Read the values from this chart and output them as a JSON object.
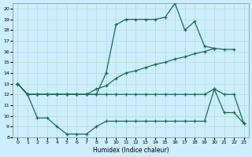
{
  "xlabel": "Humidex (Indice chaleur)",
  "bg_color": "#cceeff",
  "grid_color": "#b5ddd0",
  "line_color": "#1a6b5a",
  "xlim": [
    -0.5,
    23.5
  ],
  "ylim": [
    8,
    20.5
  ],
  "x_ticks": [
    0,
    1,
    2,
    3,
    4,
    5,
    6,
    7,
    8,
    9,
    10,
    11,
    12,
    13,
    14,
    15,
    16,
    17,
    18,
    19,
    20,
    21,
    22,
    23
  ],
  "y_ticks": [
    8,
    9,
    10,
    11,
    12,
    13,
    14,
    15,
    16,
    17,
    18,
    19,
    20
  ],
  "line_upper_x": [
    0,
    1,
    2,
    3,
    4,
    5,
    6,
    7,
    8,
    9,
    10,
    11,
    12,
    13,
    14,
    15,
    16,
    17,
    18,
    19,
    20
  ],
  "line_upper_y": [
    13,
    12,
    12,
    12,
    12,
    12,
    12,
    12,
    12,
    14,
    18.5,
    19,
    19,
    19,
    19,
    19.2,
    20.5,
    18,
    18.8,
    16.5,
    16.3
  ],
  "line_mid_x": [
    0,
    1,
    2,
    3,
    4,
    5,
    6,
    7,
    8,
    9,
    10,
    11,
    12,
    13,
    14,
    15,
    16,
    17,
    18,
    19,
    20,
    21,
    22
  ],
  "line_mid_y": [
    13,
    12,
    12,
    12,
    12,
    12,
    12,
    12,
    12.5,
    12.8,
    13.5,
    14,
    14.2,
    14.5,
    14.8,
    15,
    15.3,
    15.5,
    15.8,
    16,
    16.3,
    16.2,
    16.2
  ],
  "line_flat_x": [
    0,
    1,
    2,
    3,
    4,
    5,
    6,
    7,
    8,
    9,
    10,
    11,
    12,
    13,
    14,
    15,
    16,
    17,
    18,
    19,
    20,
    21,
    22,
    23
  ],
  "line_flat_y": [
    13,
    12,
    12,
    12,
    12,
    12,
    12,
    12,
    12,
    12,
    12,
    12,
    12,
    12,
    12,
    12,
    12,
    12,
    12,
    12,
    12.5,
    12,
    12,
    9.3
  ],
  "line_lower_x": [
    0,
    1,
    2,
    3,
    4,
    5,
    6,
    7,
    8,
    9,
    10,
    11,
    12,
    13,
    14,
    15,
    16,
    17,
    18,
    19,
    20,
    21,
    22,
    23
  ],
  "line_lower_y": [
    13,
    12,
    9.8,
    9.8,
    9.0,
    8.3,
    8.3,
    8.3,
    9.0,
    9.5,
    9.5,
    9.5,
    9.5,
    9.5,
    9.5,
    9.5,
    9.5,
    9.5,
    9.5,
    9.5,
    12.5,
    10.3,
    10.3,
    9.3
  ]
}
